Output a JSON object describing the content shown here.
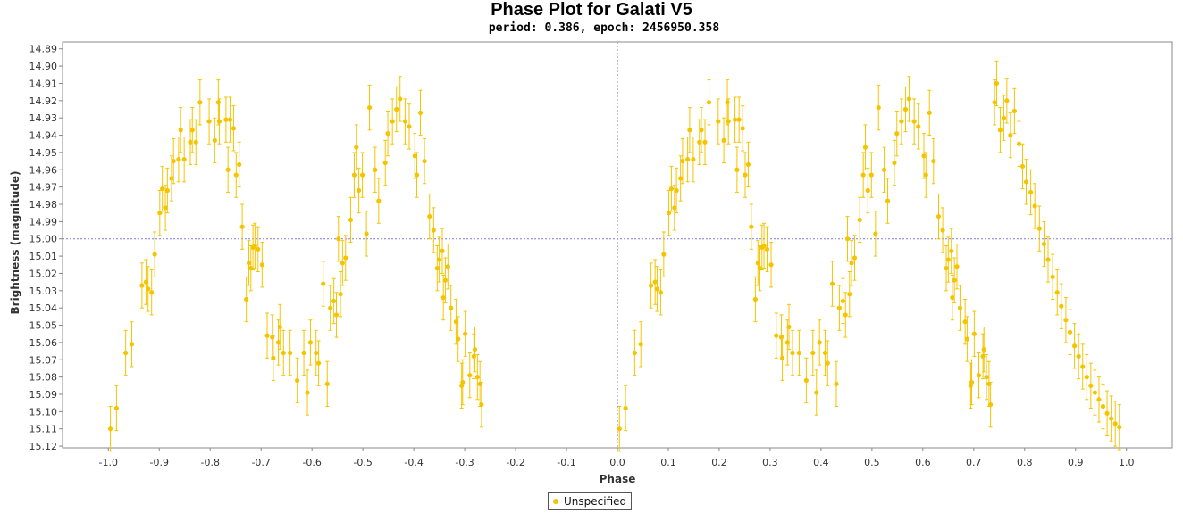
{
  "chart_data": {
    "type": "scatter",
    "title": "Phase Plot for Galati V5",
    "subtitle": "period: 0.386, epoch: 2456950.358",
    "xlabel": "Phase",
    "ylabel": "Brightness (magnitude)",
    "xlim": [
      -1.09,
      1.09
    ],
    "ylim": [
      15.121,
      14.886
    ],
    "y_inverted": true,
    "xticks": [
      -1.0,
      -0.9,
      -0.8,
      -0.7,
      -0.6,
      -0.5,
      -0.4,
      -0.3,
      -0.2,
      -0.1,
      0.0,
      0.1,
      0.2,
      0.3,
      0.4,
      0.5,
      0.6,
      0.7,
      0.8,
      0.9,
      1.0
    ],
    "xtick_labels": [
      "-1.0",
      "-0.9",
      "-0.8",
      "-0.7",
      "-0.6",
      "-0.5",
      "-0.4",
      "-0.3",
      "-0.2",
      "-0.1",
      "0.0",
      "0.1",
      "0.2",
      "0.3",
      "0.4",
      "0.5",
      "0.6",
      "0.7",
      "0.8",
      "0.9",
      "1.0"
    ],
    "yticks": [
      14.89,
      14.9,
      14.91,
      14.92,
      14.93,
      14.94,
      14.95,
      14.96,
      14.97,
      14.98,
      14.99,
      15.0,
      15.01,
      15.02,
      15.03,
      15.04,
      15.05,
      15.06,
      15.07,
      15.08,
      15.09,
      15.1,
      15.11,
      15.12
    ],
    "ytick_labels": [
      "14.89",
      "14.90",
      "14.91",
      "14.92",
      "14.93",
      "14.94",
      "14.95",
      "14.96",
      "14.97",
      "14.98",
      "14.99",
      "15.00",
      "15.01",
      "15.02",
      "15.03",
      "15.04",
      "15.05",
      "15.06",
      "15.07",
      "15.08",
      "15.09",
      "15.10",
      "15.11",
      "15.12"
    ],
    "crosshair": {
      "x": 0.0,
      "y": 15.0
    },
    "grid": false,
    "legend_position": "bottom-center",
    "color": "#f5c400",
    "series": [
      {
        "name": "Unspecified",
        "error_half_width": 0.013,
        "points": [
          [
            0.004,
            15.11
          ],
          [
            0.016,
            15.098
          ],
          [
            0.034,
            15.066
          ],
          [
            0.046,
            15.061
          ],
          [
            0.066,
            15.027
          ],
          [
            0.074,
            15.025
          ],
          [
            0.078,
            15.029
          ],
          [
            0.085,
            15.031
          ],
          [
            0.091,
            15.009
          ],
          [
            0.101,
            14.985
          ],
          [
            0.106,
            14.971
          ],
          [
            0.112,
            14.982
          ],
          [
            0.116,
            14.972
          ],
          [
            0.124,
            14.965
          ],
          [
            0.128,
            14.955
          ],
          [
            0.138,
            14.954
          ],
          [
            0.142,
            14.937
          ],
          [
            0.149,
            14.954
          ],
          [
            0.161,
            14.944
          ],
          [
            0.165,
            14.937
          ],
          [
            0.172,
            14.944
          ],
          [
            0.18,
            14.921
          ],
          [
            0.198,
            14.932
          ],
          [
            0.209,
            14.943
          ],
          [
            0.216,
            14.921
          ],
          [
            0.218,
            14.932
          ],
          [
            0.231,
            14.931
          ],
          [
            0.235,
            14.96
          ],
          [
            0.239,
            14.931
          ],
          [
            0.246,
            14.936
          ],
          [
            0.251,
            14.963
          ],
          [
            0.257,
            14.957
          ],
          [
            0.263,
            14.993
          ],
          [
            0.271,
            15.035
          ],
          [
            0.276,
            15.014
          ],
          [
            0.28,
            15.017
          ],
          [
            0.284,
            15.005
          ],
          [
            0.288,
            15.004
          ],
          [
            0.294,
            15.006
          ],
          [
            0.302,
            15.015
          ],
          [
            0.312,
            15.056
          ],
          [
            0.322,
            15.057
          ],
          [
            0.324,
            15.069
          ],
          [
            0.334,
            15.06
          ],
          [
            0.337,
            15.051
          ],
          [
            0.344,
            15.066
          ],
          [
            0.357,
            15.066
          ],
          [
            0.371,
            15.082
          ],
          [
            0.384,
            15.066
          ],
          [
            0.391,
            15.089
          ],
          [
            0.397,
            15.06
          ],
          [
            0.408,
            15.066
          ],
          [
            0.413,
            15.072
          ],
          [
            0.422,
            15.026
          ],
          [
            0.43,
            15.084
          ],
          [
            0.436,
            15.04
          ],
          [
            0.443,
            15.036
          ],
          [
            0.448,
            15.044
          ],
          [
            0.452,
            15.0
          ],
          [
            0.456,
            15.032
          ],
          [
            0.46,
            15.014
          ],
          [
            0.466,
            15.011
          ],
          [
            0.476,
            14.989
          ],
          [
            0.483,
            14.963
          ],
          [
            0.487,
            14.947
          ],
          [
            0.492,
            14.972
          ],
          [
            0.499,
            14.963
          ],
          [
            0.507,
            14.997
          ],
          [
            0.513,
            14.924
          ],
          [
            0.524,
            14.96
          ],
          [
            0.531,
            14.978
          ],
          [
            0.544,
            14.956
          ],
          [
            0.549,
            14.939
          ],
          [
            0.558,
            14.932
          ],
          [
            0.566,
            14.925
          ],
          [
            0.573,
            14.919
          ],
          [
            0.583,
            14.932
          ],
          [
            0.591,
            14.935
          ],
          [
            0.602,
            14.952
          ],
          [
            0.606,
            14.963
          ],
          [
            0.613,
            14.927
          ],
          [
            0.621,
            14.955
          ],
          [
            0.631,
            14.987
          ],
          [
            0.639,
            14.995
          ],
          [
            0.646,
            15.017
          ],
          [
            0.65,
            15.012
          ],
          [
            0.656,
            15.007
          ],
          [
            0.658,
            15.034
          ],
          [
            0.662,
            15.024
          ],
          [
            0.667,
            15.016
          ],
          [
            0.673,
            15.04
          ],
          [
            0.683,
            15.048
          ],
          [
            0.687,
            15.058
          ],
          [
            0.694,
            15.085
          ],
          [
            0.696,
            15.083
          ],
          [
            0.701,
            15.055
          ],
          [
            0.71,
            15.079
          ],
          [
            0.718,
            15.068
          ],
          [
            0.72,
            15.064
          ],
          [
            0.725,
            15.08
          ],
          [
            0.73,
            15.084
          ],
          [
            0.733,
            15.096
          ],
          [
            -0.996,
            15.11
          ],
          [
            -0.984,
            15.098
          ],
          [
            -0.966,
            15.066
          ],
          [
            -0.954,
            15.061
          ],
          [
            -0.934,
            15.027
          ],
          [
            -0.926,
            15.025
          ],
          [
            -0.922,
            15.029
          ],
          [
            -0.915,
            15.031
          ],
          [
            -0.909,
            15.009
          ],
          [
            -0.899,
            14.985
          ],
          [
            -0.894,
            14.971
          ],
          [
            -0.888,
            14.982
          ],
          [
            -0.884,
            14.972
          ],
          [
            -0.876,
            14.965
          ],
          [
            -0.872,
            14.955
          ],
          [
            -0.862,
            14.954
          ],
          [
            -0.858,
            14.937
          ],
          [
            -0.851,
            14.954
          ],
          [
            -0.839,
            14.944
          ],
          [
            -0.835,
            14.937
          ],
          [
            -0.828,
            14.944
          ],
          [
            -0.82,
            14.921
          ],
          [
            -0.802,
            14.932
          ],
          [
            -0.791,
            14.943
          ],
          [
            -0.784,
            14.921
          ],
          [
            -0.782,
            14.932
          ],
          [
            -0.769,
            14.931
          ],
          [
            -0.765,
            14.96
          ],
          [
            -0.761,
            14.931
          ],
          [
            -0.754,
            14.936
          ],
          [
            -0.749,
            14.963
          ],
          [
            -0.743,
            14.957
          ],
          [
            -0.737,
            14.993
          ],
          [
            -0.729,
            15.035
          ],
          [
            -0.724,
            15.014
          ],
          [
            -0.72,
            15.017
          ],
          [
            -0.716,
            15.005
          ],
          [
            -0.712,
            15.004
          ],
          [
            -0.706,
            15.006
          ],
          [
            -0.698,
            15.015
          ],
          [
            -0.688,
            15.056
          ],
          [
            -0.678,
            15.057
          ],
          [
            -0.676,
            15.069
          ],
          [
            -0.666,
            15.06
          ],
          [
            -0.663,
            15.051
          ],
          [
            -0.656,
            15.066
          ],
          [
            -0.643,
            15.066
          ],
          [
            -0.629,
            15.082
          ],
          [
            -0.616,
            15.066
          ],
          [
            -0.609,
            15.089
          ],
          [
            -0.603,
            15.06
          ],
          [
            -0.592,
            15.066
          ],
          [
            -0.587,
            15.072
          ],
          [
            -0.578,
            15.026
          ],
          [
            -0.57,
            15.084
          ],
          [
            -0.564,
            15.04
          ],
          [
            -0.557,
            15.036
          ],
          [
            -0.552,
            15.044
          ],
          [
            -0.548,
            15.0
          ],
          [
            -0.544,
            15.032
          ],
          [
            -0.54,
            15.014
          ],
          [
            -0.534,
            15.011
          ],
          [
            -0.524,
            14.989
          ],
          [
            -0.517,
            14.963
          ],
          [
            -0.513,
            14.947
          ],
          [
            -0.508,
            14.972
          ],
          [
            -0.501,
            14.963
          ],
          [
            -0.493,
            14.997
          ],
          [
            -0.487,
            14.924
          ],
          [
            -0.476,
            14.96
          ],
          [
            -0.469,
            14.978
          ],
          [
            -0.456,
            14.956
          ],
          [
            -0.451,
            14.939
          ],
          [
            -0.442,
            14.932
          ],
          [
            -0.434,
            14.925
          ],
          [
            -0.427,
            14.919
          ],
          [
            -0.417,
            14.932
          ],
          [
            -0.409,
            14.935
          ],
          [
            -0.398,
            14.952
          ],
          [
            -0.394,
            14.963
          ],
          [
            -0.387,
            14.927
          ],
          [
            -0.379,
            14.955
          ],
          [
            -0.369,
            14.987
          ],
          [
            -0.361,
            14.995
          ],
          [
            -0.354,
            15.017
          ],
          [
            -0.35,
            15.012
          ],
          [
            -0.344,
            15.007
          ],
          [
            -0.342,
            15.034
          ],
          [
            -0.338,
            15.024
          ],
          [
            -0.333,
            15.016
          ],
          [
            -0.327,
            15.04
          ],
          [
            -0.317,
            15.048
          ],
          [
            -0.313,
            15.058
          ],
          [
            -0.306,
            15.085
          ],
          [
            -0.304,
            15.083
          ],
          [
            -0.299,
            15.055
          ],
          [
            -0.29,
            15.079
          ],
          [
            -0.282,
            15.068
          ],
          [
            -0.28,
            15.064
          ],
          [
            -0.275,
            15.08
          ],
          [
            -0.27,
            15.084
          ],
          [
            -0.267,
            15.096
          ],
          [
            0.741,
            14.921
          ],
          [
            0.745,
            14.91
          ],
          [
            0.752,
            14.937
          ],
          [
            0.759,
            14.93
          ],
          [
            0.765,
            14.92
          ],
          [
            0.772,
            14.94
          ],
          [
            0.78,
            14.926
          ],
          [
            0.789,
            14.945
          ],
          [
            0.796,
            14.958
          ],
          [
            0.803,
            14.967
          ],
          [
            0.812,
            14.973
          ],
          [
            0.82,
            14.981
          ],
          [
            0.829,
            14.994
          ],
          [
            0.838,
            15.003
          ],
          [
            0.846,
            15.012
          ],
          [
            0.855,
            15.022
          ],
          [
            0.864,
            15.031
          ],
          [
            0.872,
            15.039
          ],
          [
            0.881,
            15.047
          ],
          [
            0.889,
            15.054
          ],
          [
            0.898,
            15.062
          ],
          [
            0.906,
            15.068
          ],
          [
            0.914,
            15.074
          ],
          [
            0.922,
            15.08
          ],
          [
            0.93,
            15.085
          ],
          [
            0.938,
            15.089
          ],
          [
            0.946,
            15.093
          ],
          [
            0.954,
            15.097
          ],
          [
            0.962,
            15.101
          ],
          [
            0.97,
            15.104
          ],
          [
            0.978,
            15.107
          ],
          [
            0.986,
            15.109
          ]
        ]
      }
    ]
  },
  "legend": {
    "label": "Unspecified"
  }
}
